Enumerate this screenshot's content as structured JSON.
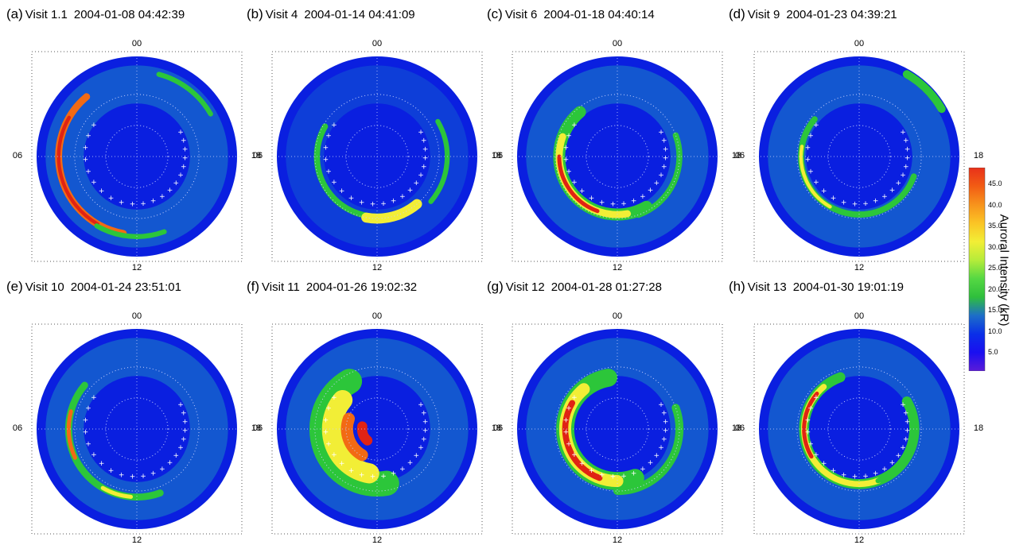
{
  "panels": [
    {
      "letter": "(a)",
      "visit": "Visit 1.1",
      "timestamp": "2004-01-08 04:42:39"
    },
    {
      "letter": "(b)",
      "visit": "Visit 4",
      "timestamp": "2004-01-14 04:41:09"
    },
    {
      "letter": "(c)",
      "visit": "Visit 6",
      "timestamp": "2004-01-18 04:40:14"
    },
    {
      "letter": "(d)",
      "visit": "Visit 9",
      "timestamp": "2004-01-23 04:39:21"
    },
    {
      "letter": "(e)",
      "visit": "Visit 10",
      "timestamp": "2004-01-24 23:51:01"
    },
    {
      "letter": "(f)",
      "visit": "Visit 11",
      "timestamp": "2004-01-26 19:02:32"
    },
    {
      "letter": "(g)",
      "visit": "Visit 12",
      "timestamp": "2004-01-28 01:27:28"
    },
    {
      "letter": "(h)",
      "visit": "Visit 13",
      "timestamp": "2004-01-30 19:01:19"
    }
  ],
  "local_time_labels": {
    "top": "00",
    "left": "06",
    "right": "18",
    "bottom": "12"
  },
  "colorbar": {
    "label": "Auroral Intensity (kR)",
    "ticks": [
      "45.0",
      "40.0",
      "35.0",
      "30.0",
      "25.0",
      "20.0",
      "15.0",
      "10.0",
      "5.0"
    ],
    "colors": [
      "#e8311a",
      "#f25c14",
      "#f7931c",
      "#fbc425",
      "#f2ee36",
      "#b6ec3a",
      "#55d843",
      "#2fbf3c",
      "#1d6ec8",
      "#0a2fe8",
      "#1a0ff0",
      "#5b1bd9"
    ]
  },
  "colors": {
    "background_disk": "#0a1fe0",
    "diffuse": "#1877c8",
    "faint": "#2cc63a",
    "mid": "#f2ee36",
    "bright": "#f26a14",
    "peak": "#e02314",
    "grid": "#c8d0ff"
  }
}
